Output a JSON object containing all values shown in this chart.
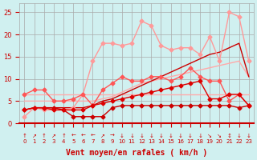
{
  "x": [
    0,
    1,
    2,
    3,
    4,
    5,
    6,
    7,
    8,
    9,
    10,
    11,
    12,
    13,
    14,
    15,
    16,
    17,
    18,
    19,
    20,
    21,
    22,
    23
  ],
  "series": [
    {
      "y": [
        6.5,
        6.5,
        6.5,
        6.5,
        6.5,
        6.5,
        6.5,
        6.5,
        6.5,
        6.5,
        6.5,
        6.5,
        6.5,
        6.5,
        6.5,
        6.5,
        6.5,
        6.5,
        6.5,
        6.5,
        6.5,
        6.5,
        6.5,
        6.5
      ],
      "color": "#ffaaaa",
      "lw": 1.0,
      "marker": null,
      "zorder": 1
    },
    {
      "y": [
        5.0,
        5.0,
        5.0,
        5.0,
        5.0,
        5.0,
        5.0,
        5.0,
        5.5,
        6.0,
        7.0,
        8.0,
        9.0,
        9.5,
        10.0,
        10.5,
        11.0,
        11.5,
        12.0,
        12.5,
        13.0,
        13.5,
        14.0,
        10.5
      ],
      "color": "#ffaaaa",
      "lw": 1.0,
      "marker": null,
      "zorder": 1
    },
    {
      "y": [
        1.5,
        3.5,
        3.0,
        3.0,
        3.0,
        3.5,
        6.5,
        14.0,
        18.0,
        18.0,
        17.5,
        18.0,
        23.0,
        22.0,
        17.5,
        16.5,
        17.0,
        17.0,
        15.5,
        19.5,
        14.0,
        25.0,
        24.0,
        14.0
      ],
      "color": "#ff9999",
      "lw": 1.0,
      "marker": "D",
      "ms": 2.5,
      "zorder": 2
    },
    {
      "y": [
        6.5,
        7.5,
        7.5,
        5.0,
        5.0,
        5.5,
        6.5,
        4.0,
        7.5,
        9.0,
        10.5,
        9.5,
        9.5,
        10.5,
        10.5,
        9.5,
        10.5,
        12.5,
        10.5,
        9.5,
        9.5,
        5.0,
        6.5,
        4.0
      ],
      "color": "#ff5555",
      "lw": 1.0,
      "marker": "D",
      "ms": 2.5,
      "zorder": 3
    },
    {
      "y": [
        3.0,
        3.5,
        3.5,
        3.5,
        3.0,
        1.5,
        1.5,
        1.5,
        1.5,
        3.5,
        4.0,
        4.0,
        4.0,
        4.0,
        4.0,
        4.0,
        4.0,
        4.0,
        4.0,
        4.0,
        4.0,
        4.0,
        3.5,
        4.0
      ],
      "color": "#cc0000",
      "lw": 1.0,
      "marker": "D",
      "ms": 2.5,
      "zorder": 4
    },
    {
      "y": [
        3.0,
        3.5,
        3.5,
        3.0,
        3.0,
        3.0,
        3.0,
        4.0,
        4.5,
        5.0,
        5.5,
        6.0,
        6.5,
        7.0,
        7.5,
        8.0,
        8.5,
        9.0,
        9.5,
        5.5,
        5.5,
        6.5,
        6.5,
        4.0
      ],
      "color": "#dd0000",
      "lw": 1.0,
      "marker": "D",
      "ms": 2.5,
      "zorder": 5
    },
    {
      "y": [
        3.0,
        3.5,
        3.5,
        3.5,
        3.5,
        3.5,
        3.5,
        4.0,
        5.0,
        5.5,
        6.5,
        7.5,
        8.5,
        9.5,
        10.5,
        11.5,
        12.5,
        13.5,
        14.5,
        15.5,
        16.0,
        17.0,
        18.0,
        10.5
      ],
      "color": "#cc0000",
      "lw": 1.0,
      "marker": null,
      "zorder": 1
    }
  ],
  "xlabel": "Vent moyen/en rafales ( km/h )",
  "xlim": [
    -0.5,
    23.5
  ],
  "ylim": [
    0,
    27
  ],
  "yticks": [
    0,
    5,
    10,
    15,
    20,
    25
  ],
  "xticks": [
    0,
    1,
    2,
    3,
    4,
    5,
    6,
    7,
    8,
    9,
    10,
    11,
    12,
    13,
    14,
    15,
    16,
    17,
    18,
    19,
    20,
    21,
    22,
    23
  ],
  "bg_color": "#d0f0f0",
  "grid_color": "#aaaaaa",
  "text_color": "#cc0000",
  "fig_width": 3.2,
  "fig_height": 2.0,
  "dpi": 100
}
